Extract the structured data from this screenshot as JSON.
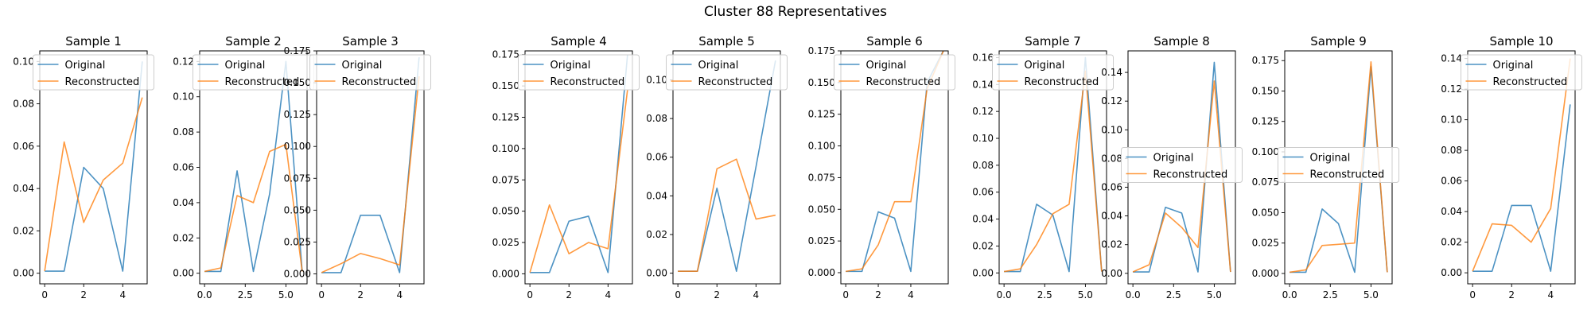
{
  "figure": {
    "title": "Cluster 88 Representatives"
  },
  "colors": {
    "original": "#1f77b4",
    "reconstructed": "#ff7f0e",
    "axis": "#000000"
  },
  "legend": {
    "labels": [
      "Original",
      "Reconstructed"
    ]
  },
  "chart_data": [
    {
      "type": "line",
      "title": "Sample 1",
      "xlim": [
        -0.25,
        5.25
      ],
      "ylim": [
        -0.005,
        0.105
      ],
      "xticks": [
        0,
        2,
        4
      ],
      "yticks": [
        0.0,
        0.02,
        0.04,
        0.06,
        0.08,
        0.1
      ],
      "yticklabels": [
        "0.00",
        "0.02",
        "0.04",
        "0.06",
        "0.08",
        "0.10"
      ],
      "legend_position": "upper center",
      "x": [
        0,
        1,
        2,
        3,
        4,
        5
      ],
      "series": [
        {
          "name": "Original",
          "values": [
            0.001,
            0.001,
            0.05,
            0.04,
            0.001,
            0.1
          ]
        },
        {
          "name": "Reconstructed",
          "values": [
            0.001,
            0.062,
            0.024,
            0.044,
            0.052,
            0.083
          ]
        }
      ]
    },
    {
      "type": "line",
      "title": "Sample 2",
      "xlim": [
        -0.3,
        6.3
      ],
      "ylim": [
        -0.006,
        0.126
      ],
      "xticks": [
        0.0,
        2.5,
        5.0
      ],
      "yticks": [
        0.0,
        0.02,
        0.04,
        0.06,
        0.08,
        0.1,
        0.12
      ],
      "yticklabels": [
        "0.00",
        "0.02",
        "0.04",
        "0.06",
        "0.08",
        "0.10",
        "0.12"
      ],
      "legend_position": "upper center",
      "x": [
        0,
        1,
        2,
        3,
        4,
        5,
        6
      ],
      "series": [
        {
          "name": "Original",
          "values": [
            0.001,
            0.001,
            0.058,
            0.001,
            0.045,
            0.12,
            0.001
          ]
        },
        {
          "name": "Reconstructed",
          "values": [
            0.001,
            0.003,
            0.044,
            0.04,
            0.069,
            0.073,
            0.001
          ]
        }
      ]
    },
    {
      "type": "line",
      "title": "Sample 3",
      "xlim": [
        -0.25,
        5.25
      ],
      "ylim": [
        -0.0078,
        0.175
      ],
      "xticks": [
        0,
        2,
        4
      ],
      "yticks": [
        0.0,
        0.025,
        0.05,
        0.075,
        0.1,
        0.125,
        0.15,
        0.175
      ],
      "yticklabels": [
        "0.000",
        "0.025",
        "0.050",
        "0.075",
        "0.100",
        "0.125",
        "0.150",
        "0.175"
      ],
      "legend_position": "upper center",
      "x": [
        0,
        1,
        2,
        3,
        4,
        5
      ],
      "series": [
        {
          "name": "Original",
          "values": [
            0.001,
            0.001,
            0.046,
            0.046,
            0.001,
            0.17
          ]
        },
        {
          "name": "Reconstructed",
          "values": [
            0.001,
            0.008,
            0.016,
            0.012,
            0.007,
            0.155
          ]
        }
      ]
    },
    {
      "type": "line",
      "title": "Sample 4",
      "xlim": [
        -0.25,
        5.25
      ],
      "ylim": [
        -0.008,
        0.178
      ],
      "xticks": [
        0,
        2,
        4
      ],
      "yticks": [
        0.0,
        0.025,
        0.05,
        0.075,
        0.1,
        0.125,
        0.15,
        0.175
      ],
      "yticklabels": [
        "0.000",
        "0.025",
        "0.050",
        "0.075",
        "0.100",
        "0.125",
        "0.150",
        "0.175"
      ],
      "legend_position": "upper center",
      "x": [
        0,
        1,
        2,
        3,
        4,
        5
      ],
      "series": [
        {
          "name": "Original",
          "values": [
            0.001,
            0.001,
            0.042,
            0.046,
            0.001,
            0.175
          ]
        },
        {
          "name": "Reconstructed",
          "values": [
            0.001,
            0.055,
            0.016,
            0.025,
            0.02,
            0.147
          ]
        }
      ]
    },
    {
      "type": "line",
      "title": "Sample 5",
      "xlim": [
        -0.25,
        5.25
      ],
      "ylim": [
        -0.0055,
        0.115
      ],
      "xticks": [
        0,
        2,
        4
      ],
      "yticks": [
        0.0,
        0.02,
        0.04,
        0.06,
        0.08,
        0.1
      ],
      "yticklabels": [
        "0.00",
        "0.02",
        "0.04",
        "0.06",
        "0.08",
        "0.10"
      ],
      "legend_position": "upper center",
      "x": [
        0,
        1,
        2,
        3,
        4,
        5
      ],
      "series": [
        {
          "name": "Original",
          "values": [
            0.001,
            0.001,
            0.044,
            0.001,
            0.055,
            0.11
          ]
        },
        {
          "name": "Reconstructed",
          "values": [
            0.001,
            0.001,
            0.054,
            0.059,
            0.028,
            0.03
          ]
        }
      ]
    },
    {
      "type": "line",
      "title": "Sample 6",
      "xlim": [
        -0.3,
        6.3
      ],
      "ylim": [
        -0.0088,
        0.175
      ],
      "xticks": [
        0,
        2,
        4
      ],
      "yticks": [
        0.0,
        0.025,
        0.05,
        0.075,
        0.1,
        0.125,
        0.15,
        0.175
      ],
      "yticklabels": [
        "0.000",
        "0.025",
        "0.050",
        "0.075",
        "0.100",
        "0.125",
        "0.150",
        "0.175"
      ],
      "legend_position": "upper center",
      "x": [
        0,
        1,
        2,
        3,
        4,
        5,
        6
      ],
      "series": [
        {
          "name": "Original",
          "values": [
            0.001,
            0.001,
            0.048,
            0.043,
            0.001,
            0.15,
            0.175
          ]
        },
        {
          "name": "Reconstructed",
          "values": [
            0.001,
            0.003,
            0.022,
            0.056,
            0.056,
            0.145,
            0.175
          ]
        }
      ]
    },
    {
      "type": "line",
      "title": "Sample 7",
      "xlim": [
        -0.3,
        6.3
      ],
      "ylim": [
        -0.0081,
        0.165
      ],
      "xticks": [
        0.0,
        2.5,
        5.0
      ],
      "yticks": [
        0.0,
        0.02,
        0.04,
        0.06,
        0.08,
        0.1,
        0.12,
        0.14,
        0.16
      ],
      "yticklabels": [
        "0.00",
        "0.02",
        "0.04",
        "0.06",
        "0.08",
        "0.10",
        "0.12",
        "0.14",
        "0.16"
      ],
      "legend_position": "upper center",
      "x": [
        0,
        1,
        2,
        3,
        4,
        5,
        6
      ],
      "series": [
        {
          "name": "Original",
          "values": [
            0.001,
            0.001,
            0.051,
            0.043,
            0.001,
            0.16,
            0.001
          ]
        },
        {
          "name": "Reconstructed",
          "values": [
            0.001,
            0.003,
            0.021,
            0.044,
            0.051,
            0.15,
            0.001
          ]
        }
      ]
    },
    {
      "type": "line",
      "title": "Sample 8",
      "xlim": [
        -0.3,
        6.3
      ],
      "ylim": [
        -0.0073,
        0.155
      ],
      "xticks": [
        0.0,
        2.5,
        5.0
      ],
      "yticks": [
        0.0,
        0.02,
        0.04,
        0.06,
        0.08,
        0.1,
        0.12,
        0.14
      ],
      "yticklabels": [
        "0.00",
        "0.02",
        "0.04",
        "0.06",
        "0.08",
        "0.10",
        "0.12",
        "0.14"
      ],
      "legend_position": "center",
      "x": [
        0,
        1,
        2,
        3,
        4,
        5,
        6
      ],
      "series": [
        {
          "name": "Original",
          "values": [
            0.001,
            0.001,
            0.046,
            0.042,
            0.001,
            0.147,
            0.001
          ]
        },
        {
          "name": "Reconstructed",
          "values": [
            0.001,
            0.006,
            0.042,
            0.032,
            0.018,
            0.134,
            0.001
          ]
        }
      ]
    },
    {
      "type": "line",
      "title": "Sample 9",
      "xlim": [
        -0.3,
        6.3
      ],
      "ylim": [
        -0.0085,
        0.183
      ],
      "xticks": [
        0.0,
        2.5,
        5.0
      ],
      "yticks": [
        0.0,
        0.025,
        0.05,
        0.075,
        0.1,
        0.125,
        0.15,
        0.175
      ],
      "yticklabels": [
        "0.000",
        "0.025",
        "0.050",
        "0.075",
        "0.100",
        "0.125",
        "0.150",
        "0.175"
      ],
      "legend_position": "center",
      "x": [
        0,
        1,
        2,
        3,
        4,
        5,
        6
      ],
      "series": [
        {
          "name": "Original",
          "values": [
            0.001,
            0.001,
            0.053,
            0.041,
            0.001,
            0.17,
            0.001
          ]
        },
        {
          "name": "Reconstructed",
          "values": [
            0.001,
            0.003,
            0.023,
            0.024,
            0.025,
            0.174,
            0.001
          ]
        }
      ]
    },
    {
      "type": "line",
      "title": "Sample 10",
      "xlim": [
        -0.25,
        5.25
      ],
      "ylim": [
        -0.0072,
        0.145
      ],
      "xticks": [
        0,
        2,
        4
      ],
      "yticks": [
        0.0,
        0.02,
        0.04,
        0.06,
        0.08,
        0.1,
        0.12,
        0.14
      ],
      "yticklabels": [
        "0.00",
        "0.02",
        "0.04",
        "0.06",
        "0.08",
        "0.10",
        "0.12",
        "0.14"
      ],
      "legend_position": "upper center",
      "x": [
        0,
        1,
        2,
        3,
        4,
        5
      ],
      "series": [
        {
          "name": "Original",
          "values": [
            0.001,
            0.001,
            0.044,
            0.044,
            0.001,
            0.11
          ]
        },
        {
          "name": "Reconstructed",
          "values": [
            0.001,
            0.032,
            0.031,
            0.02,
            0.042,
            0.14
          ]
        }
      ]
    }
  ]
}
